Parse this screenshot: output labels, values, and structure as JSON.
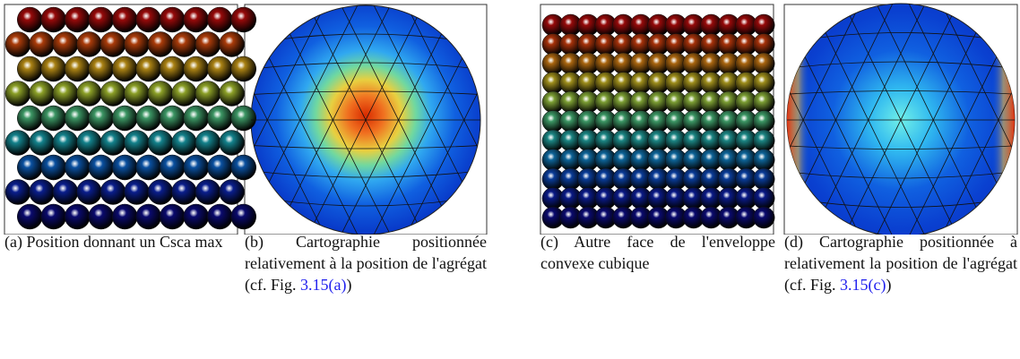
{
  "panels": [
    {
      "label": "(a)",
      "caption": "Position donnant un Csca max"
    },
    {
      "label": "(b)",
      "caption": "Cartographie positionnée relativement à la position de l'agrégat (cf. Fig.",
      "ref": "3.15(a)",
      "close": ")"
    },
    {
      "label": "(c)",
      "caption": "Autre face de l'enveloppe convexe cubique"
    },
    {
      "label": "(d)",
      "caption": "Cartographie positionnée à relativement la position de l'agrégat (cf. Fig.",
      "ref": "3.15(c)",
      "close": ")"
    }
  ]
}
